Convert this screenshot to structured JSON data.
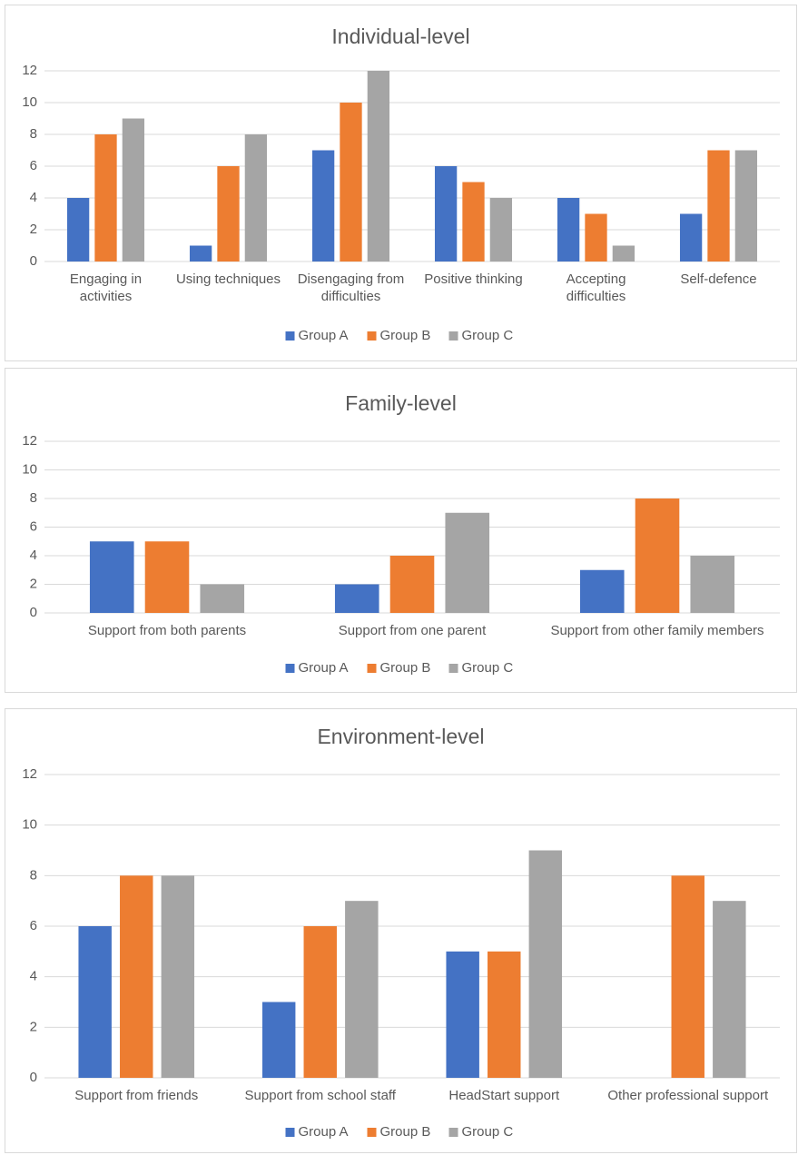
{
  "chart_data": [
    {
      "type": "bar",
      "title": "Individual-level",
      "categories": [
        "Engaging in activities",
        "Using techniques",
        "Disengaging from difficulties",
        "Positive thinking",
        "Accepting difficulties",
        "Self-defence"
      ],
      "series": [
        {
          "name": "Group A",
          "color": "#4472c4",
          "values": [
            4,
            1,
            7,
            6,
            4,
            3
          ]
        },
        {
          "name": "Group B",
          "color": "#ed7d31",
          "values": [
            8,
            6,
            10,
            5,
            3,
            7
          ]
        },
        {
          "name": "Group C",
          "color": "#a5a5a5",
          "values": [
            9,
            8,
            12,
            4,
            1,
            7
          ]
        }
      ],
      "ylim": [
        0,
        12
      ],
      "yticks": [
        0,
        2,
        4,
        6,
        8,
        10,
        12
      ],
      "grid": true,
      "legend": "bottom"
    },
    {
      "type": "bar",
      "title": "Family-level",
      "categories": [
        "Support from both parents",
        "Support from one parent",
        "Support from other family members"
      ],
      "series": [
        {
          "name": "Group A",
          "color": "#4472c4",
          "values": [
            5,
            2,
            3
          ]
        },
        {
          "name": "Group B",
          "color": "#ed7d31",
          "values": [
            5,
            4,
            8
          ]
        },
        {
          "name": "Group C",
          "color": "#a5a5a5",
          "values": [
            2,
            7,
            4
          ]
        }
      ],
      "ylim": [
        0,
        12
      ],
      "yticks": [
        0,
        2,
        4,
        6,
        8,
        10,
        12
      ],
      "grid": true,
      "legend": "bottom"
    },
    {
      "type": "bar",
      "title": "Environment-level",
      "categories": [
        "Support from friends",
        "Support from school staff",
        "HeadStart support",
        "Other professional support"
      ],
      "series": [
        {
          "name": "Group A",
          "color": "#4472c4",
          "values": [
            6,
            3,
            5,
            0
          ]
        },
        {
          "name": "Group B",
          "color": "#ed7d31",
          "values": [
            8,
            6,
            5,
            8
          ]
        },
        {
          "name": "Group C",
          "color": "#a5a5a5",
          "values": [
            8,
            7,
            9,
            7
          ]
        }
      ],
      "ylim": [
        0,
        12
      ],
      "yticks": [
        0,
        2,
        4,
        6,
        8,
        10,
        12
      ],
      "grid": true,
      "legend": "bottom"
    }
  ]
}
